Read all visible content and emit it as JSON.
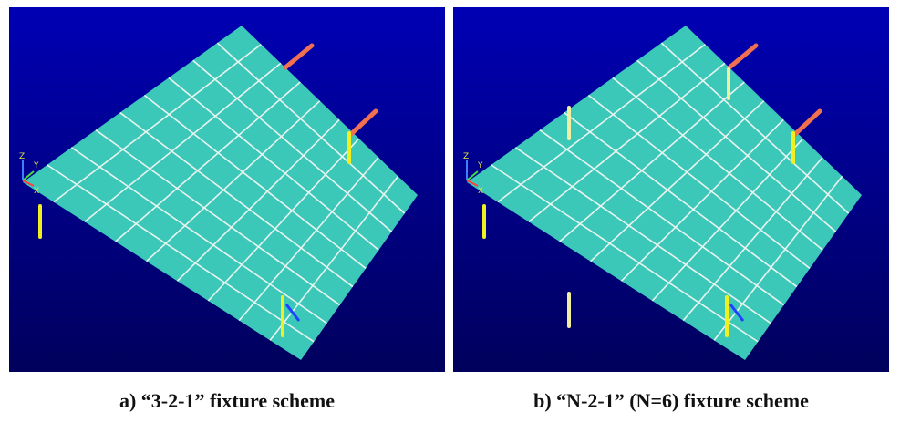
{
  "panels": [
    {
      "caption": "a) “3-2-1” fixture scheme",
      "axis_labels": [
        "Z",
        "Y",
        "X"
      ]
    },
    {
      "caption": "b) “N-2-1” (N=6) fixture scheme",
      "axis_labels": [
        "Z",
        "Y",
        "X"
      ]
    }
  ]
}
